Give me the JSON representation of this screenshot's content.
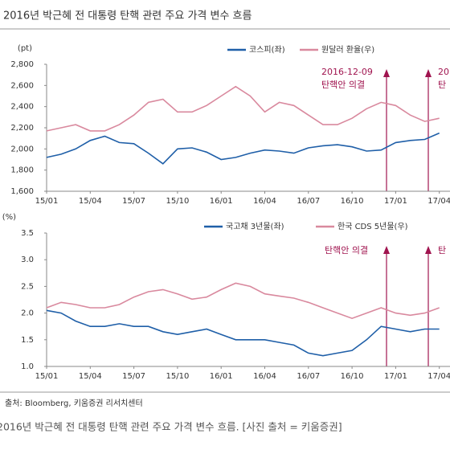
{
  "title": "2016년 박근혜 전 대통령 탄핵 관련 주요 가격 변수 흐름",
  "chart_data": [
    {
      "type": "line",
      "y_label": "(pt)",
      "categories": [
        "15/01",
        null,
        null,
        "15/04",
        null,
        null,
        "15/07",
        null,
        null,
        "15/10",
        null,
        null,
        "16/01",
        null,
        null,
        "16/04",
        null,
        null,
        "16/07",
        null,
        null,
        "16/10",
        null,
        null,
        "17/01",
        null,
        null,
        "17/04"
      ],
      "ylim": [
        1600,
        2800
      ],
      "yticks": [
        {
          "value": 1600,
          "label": "1,600"
        },
        {
          "value": 1800,
          "label": "1,800"
        },
        {
          "value": 2000,
          "label": "2,000"
        },
        {
          "value": 2200,
          "label": "2,200"
        },
        {
          "value": 2400,
          "label": "2,400"
        },
        {
          "value": 2600,
          "label": "2,600"
        },
        {
          "value": 2800,
          "label": "2,800"
        }
      ],
      "y2lim": [
        900,
        1300
      ],
      "series": [
        {
          "name": "코스피(좌)",
          "color": "#1f5fa8",
          "values": [
            1920,
            1950,
            2000,
            2080,
            2120,
            2060,
            2050,
            1960,
            1860,
            2000,
            2010,
            1970,
            1900,
            1920,
            1960,
            1990,
            1980,
            1960,
            2010,
            2030,
            2040,
            2020,
            1980,
            1990,
            2060,
            2080,
            2090,
            2150
          ]
        },
        {
          "name": "원달러 환율(우)",
          "color": "#d9899e",
          "axis": "y2",
          "values": [
            1090,
            1100,
            1110,
            1090,
            1090,
            1110,
            1140,
            1180,
            1190,
            1150,
            1150,
            1170,
            1200,
            1230,
            1200,
            1150,
            1180,
            1170,
            1140,
            1110,
            1110,
            1130,
            1160,
            1180,
            1170,
            1140,
            1120,
            1130
          ]
        }
      ],
      "annotations": [
        {
          "lines": [
            "2016-12-09",
            "탄핵안 의결"
          ]
        },
        {
          "lines": [
            "20",
            "탄"
          ]
        }
      ]
    },
    {
      "type": "line",
      "y_label": "(%)",
      "categories": [
        "15/01",
        null,
        null,
        "15/04",
        null,
        null,
        "15/07",
        null,
        null,
        "15/10",
        null,
        null,
        "16/01",
        null,
        null,
        "16/04",
        null,
        null,
        "16/07",
        null,
        null,
        "16/10",
        null,
        null,
        "17/01",
        null,
        null,
        "17/04"
      ],
      "ylim": [
        1.0,
        3.5
      ],
      "yticks": [
        {
          "value": 1.0,
          "label": "1.0"
        },
        {
          "value": 1.5,
          "label": "1.5"
        },
        {
          "value": 2.0,
          "label": "2.0"
        },
        {
          "value": 2.5,
          "label": "2.5"
        },
        {
          "value": 3.0,
          "label": "3.0"
        },
        {
          "value": 3.5,
          "label": "3.5"
        }
      ],
      "y2lim": [
        0,
        125
      ],
      "series": [
        {
          "name": "국고채 3년물(좌)",
          "color": "#1f5fa8",
          "values": [
            2.05,
            2.0,
            1.85,
            1.75,
            1.75,
            1.8,
            1.75,
            1.75,
            1.65,
            1.6,
            1.65,
            1.7,
            1.6,
            1.5,
            1.5,
            1.5,
            1.45,
            1.4,
            1.25,
            1.2,
            1.25,
            1.3,
            1.5,
            1.75,
            1.7,
            1.65,
            1.7,
            1.7
          ]
        },
        {
          "name": "한국 CDS 5년물(우)",
          "color": "#d9899e",
          "axis": "y2",
          "values": [
            55,
            60,
            58,
            55,
            55,
            58,
            65,
            70,
            72,
            68,
            63,
            65,
            72,
            78,
            75,
            68,
            66,
            64,
            60,
            55,
            50,
            45,
            50,
            55,
            50,
            48,
            50,
            55
          ]
        }
      ],
      "annotations": [
        {
          "lines": [
            "탄핵안 의결"
          ]
        },
        {
          "lines": [
            "탄"
          ]
        }
      ]
    }
  ],
  "source": "출처: Bloomberg, 키움증권 리서치센터",
  "caption": "2016년 박근혜 전 대통령 탄핵 관련 주요 가격 변수 흐름. [사진 출처 = 키움증권]"
}
